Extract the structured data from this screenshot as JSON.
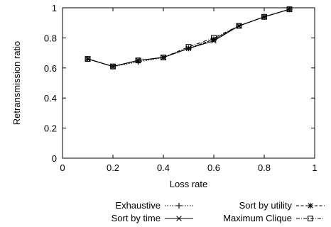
{
  "chart_data": {
    "type": "line",
    "xlabel": "Loss rate",
    "ylabel": "Retransmission ratio",
    "xlim": [
      0,
      1
    ],
    "ylim": [
      0,
      1
    ],
    "xticks": [
      0,
      0.2,
      0.4,
      0.6,
      0.8,
      1
    ],
    "yticks": [
      0,
      0.2,
      0.4,
      0.6,
      0.8,
      1
    ],
    "x_tick_labels": [
      "0",
      "0.2",
      "0.4",
      "0.6",
      "0.8",
      "1"
    ],
    "y_tick_labels": [
      "0",
      "0.2",
      "0.4",
      "0.6",
      "0.8",
      "1"
    ],
    "grid": false,
    "legend_position": "bottom",
    "x": [
      0.1,
      0.2,
      0.3,
      0.4,
      0.5,
      0.6,
      0.7,
      0.8,
      0.9
    ],
    "series": [
      {
        "name": "Exhaustive",
        "marker": "plus",
        "line_style": "dotted",
        "values": [
          0.66,
          0.61,
          0.64,
          0.67,
          0.73,
          0.79,
          0.88,
          0.94,
          0.99
        ]
      },
      {
        "name": "Sort by utility",
        "marker": "star",
        "line_style": "dashed",
        "values": [
          0.66,
          0.61,
          0.65,
          0.67,
          0.73,
          0.79,
          0.88,
          0.94,
          0.99
        ]
      },
      {
        "name": "Sort by time",
        "marker": "cross",
        "line_style": "solid",
        "values": [
          0.66,
          0.61,
          0.65,
          0.67,
          0.73,
          0.78,
          0.88,
          0.94,
          0.99
        ]
      },
      {
        "name": "Maximum Clique",
        "marker": "square",
        "line_style": "dash-dot",
        "values": [
          0.66,
          0.61,
          0.65,
          0.67,
          0.74,
          0.8,
          0.88,
          0.94,
          0.99
        ]
      }
    ]
  }
}
